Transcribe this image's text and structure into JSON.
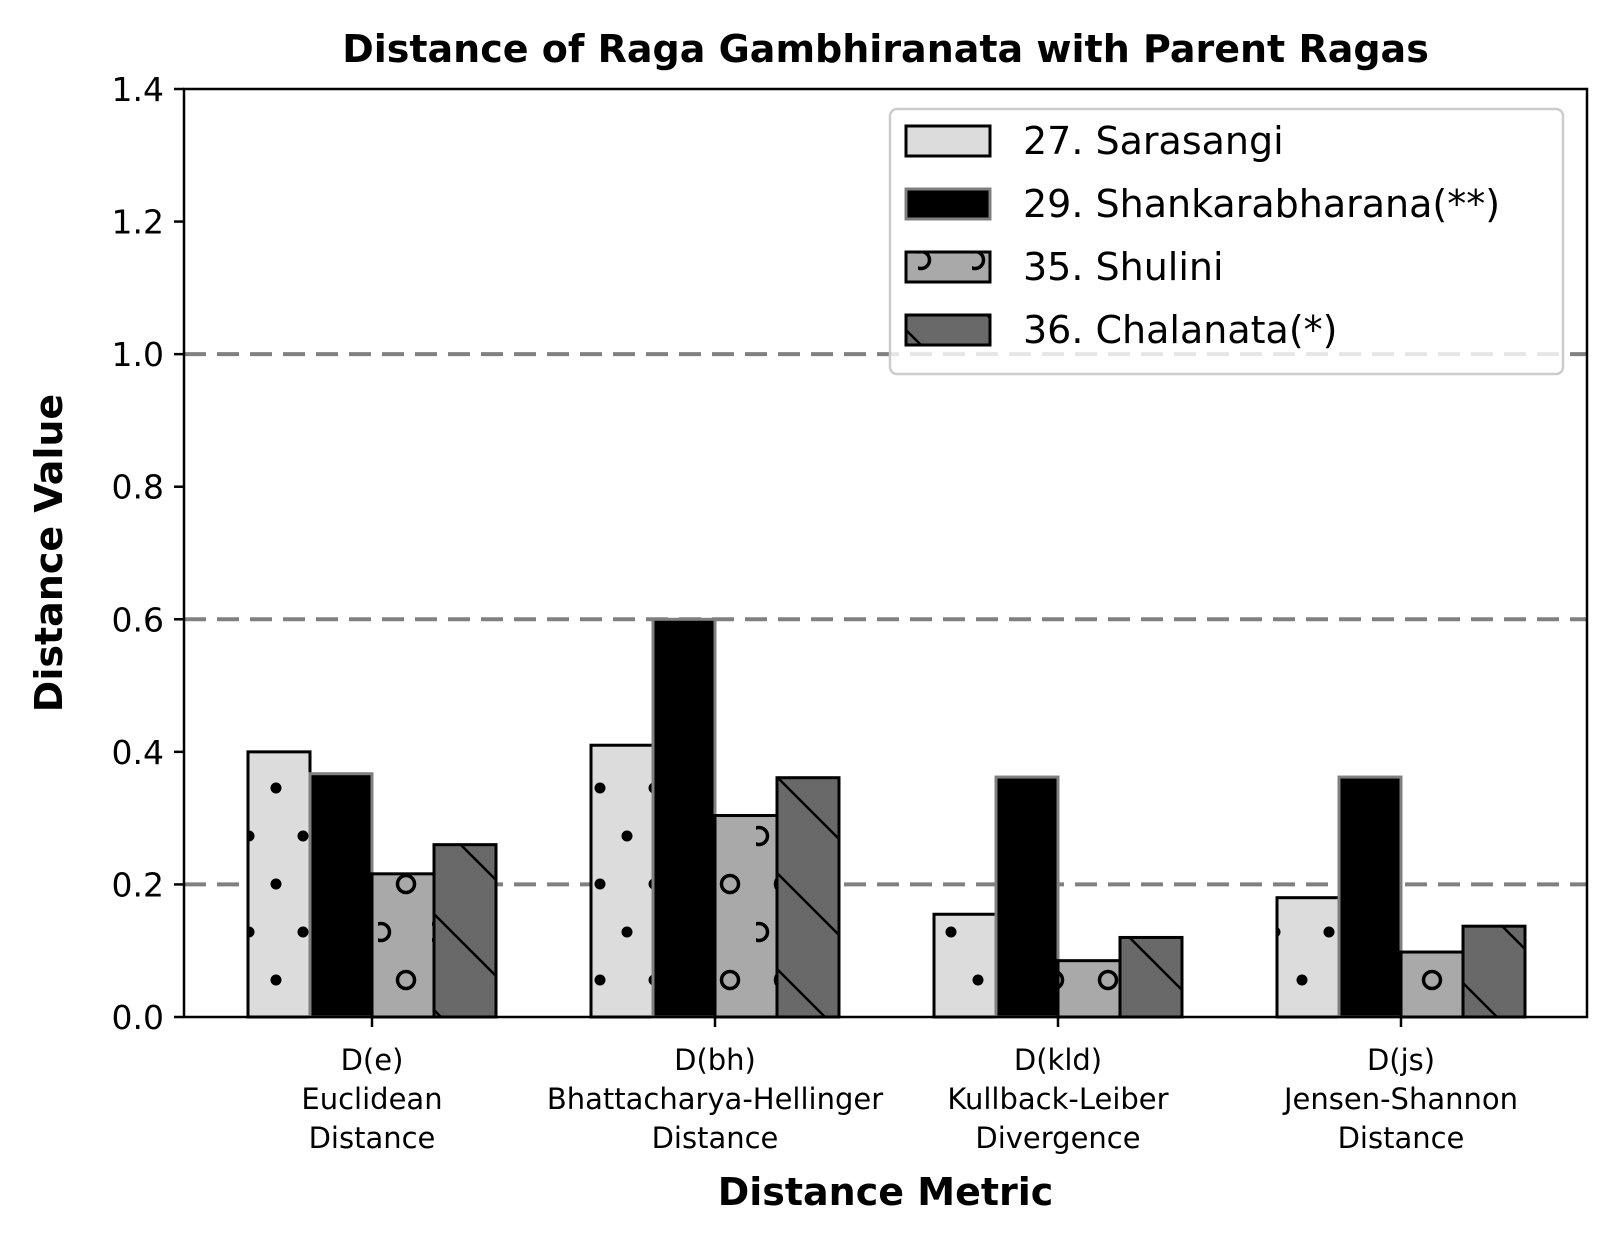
{
  "chart_data": {
    "type": "bar",
    "title": "Distance of Raga Gambhiranata with Parent Ragas",
    "xlabel": "Distance Metric",
    "ylabel": "Distance Value",
    "ylim": [
      0,
      1.4
    ],
    "yticks": [
      "0.0",
      "0.2",
      "0.4",
      "0.6",
      "0.8",
      "1.0",
      "1.2",
      "1.4"
    ],
    "categories": [
      [
        "D(e)",
        "Euclidean",
        "Distance"
      ],
      [
        "D(bh)",
        "Bhattacharya-Hellinger",
        "Distance"
      ],
      [
        "D(kld)",
        "Kullback-Leiber",
        "Divergence"
      ],
      [
        "D(js)",
        "Jensen-Shannon",
        "Distance"
      ]
    ],
    "series": [
      {
        "name": "27. Sarasangi",
        "values": [
          0.4,
          0.41,
          0.155,
          0.18
        ],
        "fill": "#dcdcdc",
        "edge": "#000000",
        "hatch": "small-dots"
      },
      {
        "name": "29. Shankarabharana(**)",
        "values": [
          0.367,
          0.6,
          0.362,
          0.362
        ],
        "fill": "#000000",
        "edge": "#808080",
        "hatch": "none"
      },
      {
        "name": "35. Shulini",
        "values": [
          0.216,
          0.304,
          0.085,
          0.098
        ],
        "fill": "#a9a9a9",
        "edge": "#000000",
        "hatch": "circles"
      },
      {
        "name": "36. Chalanata(*)",
        "values": [
          0.26,
          0.361,
          0.12,
          0.137
        ],
        "fill": "#696969",
        "edge": "#000000",
        "hatch": "backslash"
      }
    ],
    "reference_lines": [
      0.2,
      0.6,
      1.0
    ],
    "reference_line_color": "#808080",
    "grid": false,
    "legend_position": "top-right"
  }
}
